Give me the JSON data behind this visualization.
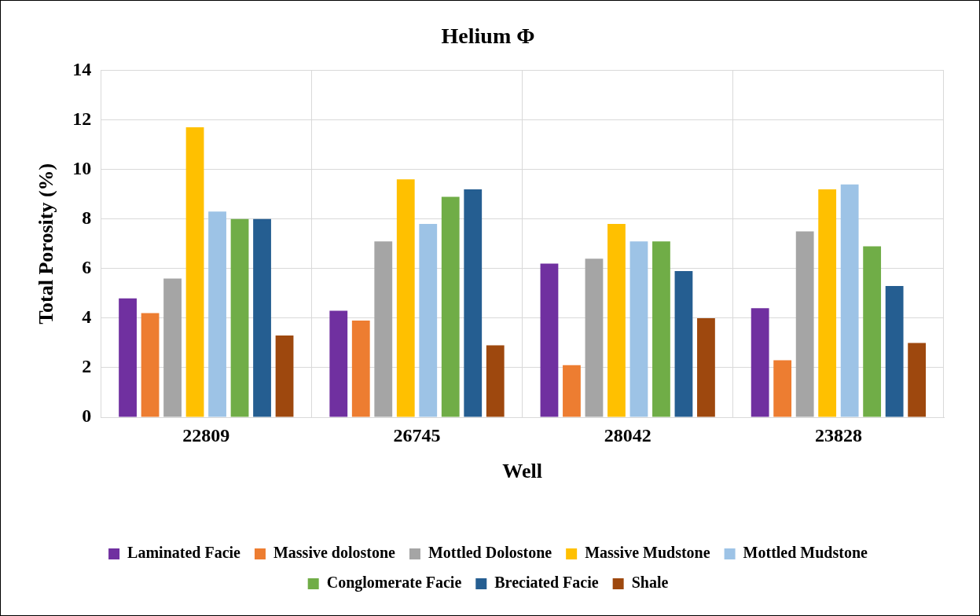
{
  "chart_data": {
    "type": "bar",
    "title": "Helium Φ",
    "xlabel": "Well",
    "ylabel": "Total Porosity (%)",
    "categories": [
      "22809",
      "26745",
      "28042",
      "23828"
    ],
    "series": [
      {
        "name": "Laminated Facie",
        "color": "#7030a0",
        "values": [
          4.8,
          4.3,
          6.2,
          4.4
        ]
      },
      {
        "name": "Massive dolostone",
        "color": "#ed7d31",
        "values": [
          4.2,
          3.9,
          2.1,
          2.3
        ]
      },
      {
        "name": "Mottled Dolostone",
        "color": "#a5a5a5",
        "values": [
          5.6,
          7.1,
          6.4,
          7.5
        ]
      },
      {
        "name": "Massive Mudstone",
        "color": "#ffc000",
        "values": [
          11.7,
          9.6,
          7.8,
          9.2
        ]
      },
      {
        "name": "Mottled Mudstone",
        "color": "#9dc3e6",
        "values": [
          8.3,
          7.8,
          7.1,
          9.4
        ]
      },
      {
        "name": "Conglomerate Facie",
        "color": "#70ad47",
        "values": [
          8.0,
          8.9,
          7.1,
          6.9
        ]
      },
      {
        "name": "Breciated Facie",
        "color": "#255e91",
        "values": [
          8.0,
          9.2,
          5.9,
          5.3
        ]
      },
      {
        "name": "Shale",
        "color": "#9e480e",
        "values": [
          3.3,
          2.9,
          4.0,
          3.0
        ]
      }
    ],
    "ylim": [
      0,
      14
    ],
    "yticks": [
      0,
      2,
      4,
      6,
      8,
      10,
      12,
      14
    ],
    "grid": true,
    "legend": "bottom"
  }
}
